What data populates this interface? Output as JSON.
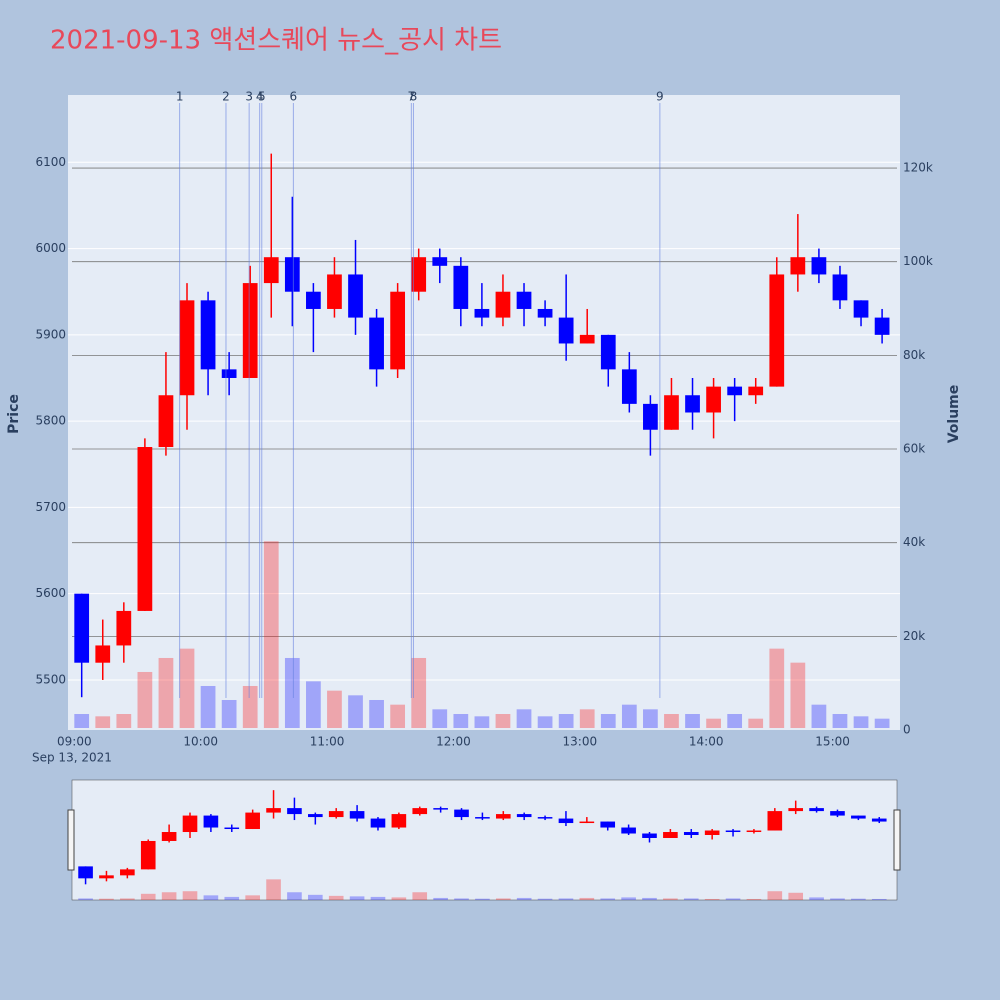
{
  "chart_data": {
    "type": "candlestick",
    "title": "2021-09-13 액션스퀘어 뉴스_공시 차트",
    "y_label": "Price",
    "y2_label": "Volume",
    "x_date_label": "Sep 13, 2021",
    "increasing_color": "#ff0000",
    "decreasing_color": "#0000ff",
    "x": [
      "09:00",
      "09:10",
      "09:20",
      "09:30",
      "09:40",
      "09:50",
      "10:00",
      "10:10",
      "10:20",
      "10:30",
      "10:40",
      "10:50",
      "11:00",
      "11:10",
      "11:20",
      "11:30",
      "11:40",
      "11:50",
      "12:00",
      "12:10",
      "12:20",
      "12:30",
      "12:40",
      "12:50",
      "13:00",
      "13:10",
      "13:20",
      "13:30",
      "13:40",
      "13:50",
      "14:00",
      "14:10",
      "14:20",
      "14:30",
      "14:40",
      "14:50",
      "15:00",
      "15:10",
      "15:20"
    ],
    "open": [
      5600,
      5520,
      5540,
      5580,
      5770,
      5830,
      5940,
      5860,
      5850,
      5960,
      5990,
      5950,
      5930,
      5970,
      5920,
      5860,
      5950,
      5990,
      5980,
      5930,
      5920,
      5950,
      5930,
      5920,
      5890,
      5900,
      5860,
      5820,
      5790,
      5830,
      5810,
      5840,
      5830,
      5840,
      5970,
      5990,
      5970,
      5940,
      5920
    ],
    "high": [
      5600,
      5570,
      5590,
      5780,
      5880,
      5960,
      5950,
      5880,
      5980,
      6110,
      6060,
      5960,
      5990,
      6010,
      5930,
      5960,
      6000,
      6000,
      5990,
      5960,
      5970,
      5960,
      5940,
      5970,
      5930,
      5900,
      5880,
      5830,
      5850,
      5850,
      5850,
      5850,
      5850,
      5990,
      6040,
      6000,
      5980,
      5940,
      5930
    ],
    "low": [
      5480,
      5500,
      5520,
      5580,
      5760,
      5790,
      5830,
      5830,
      5850,
      5920,
      5910,
      5880,
      5920,
      5900,
      5840,
      5850,
      5940,
      5960,
      5910,
      5910,
      5910,
      5910,
      5910,
      5870,
      5890,
      5840,
      5810,
      5760,
      5790,
      5790,
      5780,
      5800,
      5820,
      5840,
      5950,
      5960,
      5930,
      5910,
      5890
    ],
    "close": [
      5520,
      5540,
      5580,
      5770,
      5830,
      5940,
      5860,
      5850,
      5960,
      5990,
      5950,
      5930,
      5970,
      5920,
      5860,
      5950,
      5990,
      5980,
      5930,
      5920,
      5950,
      5930,
      5920,
      5890,
      5900,
      5860,
      5820,
      5790,
      5830,
      5810,
      5840,
      5830,
      5840,
      5970,
      5990,
      5970,
      5940,
      5920,
      5900
    ],
    "volume": [
      3000,
      2500,
      3000,
      12000,
      15000,
      17000,
      9000,
      6000,
      9000,
      40000,
      15000,
      10000,
      8000,
      7000,
      6000,
      5000,
      15000,
      4000,
      3000,
      2500,
      3000,
      4000,
      2500,
      3000,
      4000,
      3000,
      5000,
      4000,
      3000,
      3000,
      2000,
      3000,
      2000,
      17000,
      14000,
      5000,
      3000,
      2500,
      2000
    ],
    "xlim": [
      "08:57",
      "15:32"
    ],
    "xticks": [
      "09:00",
      "10:00",
      "11:00",
      "12:00",
      "13:00",
      "14:00",
      "15:00"
    ],
    "ylim": [
      5442,
      6178
    ],
    "yticks": [
      5500,
      5600,
      5700,
      5800,
      5900,
      6000,
      6100
    ],
    "y2lim": [
      0,
      135600
    ],
    "y2ticks": [
      0,
      {
        "value": 20000,
        "label": "20k"
      },
      {
        "value": 40000,
        "label": "40k"
      },
      {
        "value": 60000,
        "label": "60k"
      },
      {
        "value": 80000,
        "label": "80k"
      },
      {
        "value": 100000,
        "label": "100k"
      },
      {
        "value": 120000,
        "label": "120k"
      }
    ],
    "events": [
      {
        "label": "1",
        "x": "09:50"
      },
      {
        "label": "2",
        "x": "10:12"
      },
      {
        "label": "3",
        "x": "10:23"
      },
      {
        "label": "4",
        "x": "10:28"
      },
      {
        "label": "5",
        "x": "10:29"
      },
      {
        "label": "6",
        "x": "10:44"
      },
      {
        "label": "7",
        "x": "11:40"
      },
      {
        "label": "8",
        "x": "11:41"
      },
      {
        "label": "9",
        "x": "13:38"
      }
    ]
  }
}
